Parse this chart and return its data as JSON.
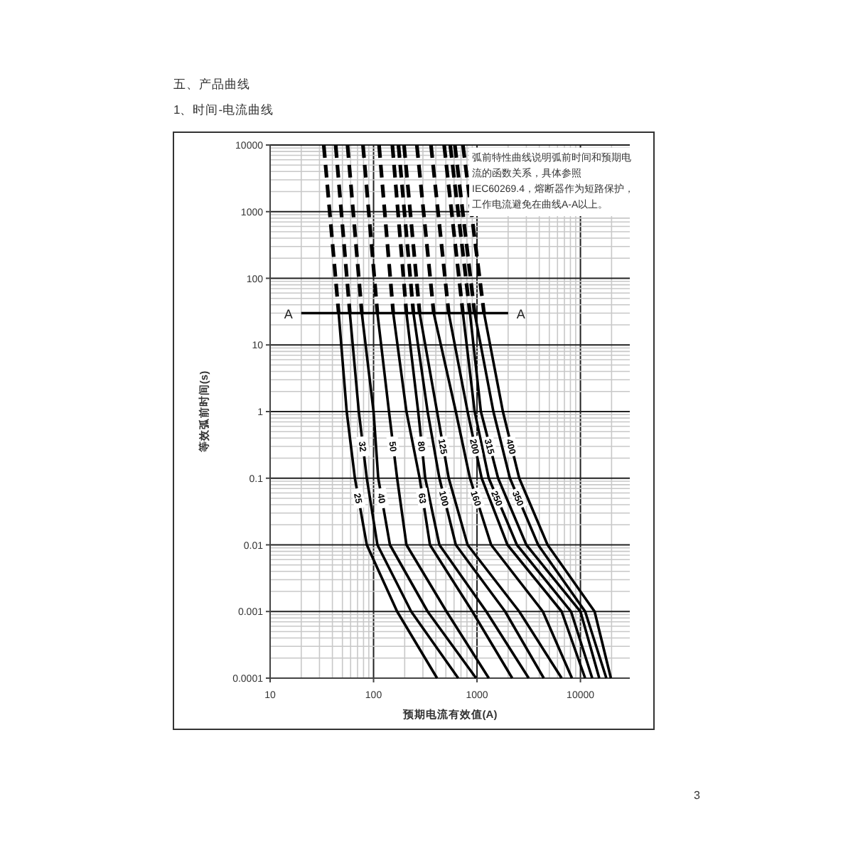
{
  "chart_data": {
    "type": "line",
    "title": "五、产品曲线",
    "subtitle": "1、时间-电流曲线",
    "xlabel": "预期电流有效值(A)",
    "ylabel": "等效弧前时间(s)",
    "log": "xy",
    "grid": true,
    "xlim": [
      10,
      30000
    ],
    "ylim": [
      0.0001,
      10000
    ],
    "xticks": [
      10,
      100,
      1000,
      10000
    ],
    "yticks": [
      0.0001,
      0.001,
      0.01,
      0.1,
      1,
      10,
      100,
      1000,
      10000
    ],
    "annotations": [
      "弧前特性曲线说明弧前时间和预期电流的函数关系，具体参照 IEC60269.4，熔断器作为短路保护，工作电流避免在曲线A-A以上。",
      "3",
      "A",
      "A"
    ],
    "series": [
      {
        "color": "#000000",
        "line_style": "solid",
        "x": [
          20,
          2000
        ],
        "values": [
          30,
          30
        ]
      },
      {
        "color": "#000000",
        "line_style": "dashed",
        "x": [
          33,
          46
        ],
        "values": [
          10000,
          30
        ]
      },
      {
        "color": "#000000",
        "line_style": "dashed",
        "x": [
          43,
          59
        ],
        "values": [
          10000,
          30
        ]
      },
      {
        "color": "#000000",
        "line_style": "dashed",
        "x": [
          56,
          77
        ],
        "values": [
          10000,
          30
        ]
      },
      {
        "color": "#000000",
        "line_style": "dashed",
        "x": [
          79,
          109
        ],
        "values": [
          10000,
          30
        ]
      },
      {
        "color": "#000000",
        "line_style": "dashed",
        "x": [
          113,
          155
        ],
        "values": [
          10000,
          30
        ]
      },
      {
        "color": "#000000",
        "line_style": "dashed",
        "x": [
          152,
          208
        ],
        "values": [
          10000,
          30
        ]
      },
      {
        "color": "#000000",
        "line_style": "dashed",
        "x": [
          174,
          243
        ],
        "values": [
          10000,
          30
        ]
      },
      {
        "color": "#000000",
        "line_style": "dashed",
        "x": [
          197,
          279
        ],
        "values": [
          10000,
          30
        ]
      },
      {
        "color": "#000000",
        "line_style": "dashed",
        "x": [
          262,
          382
        ],
        "values": [
          10000,
          30
        ]
      },
      {
        "color": "#000000",
        "line_style": "dashed",
        "x": [
          359,
          533
        ],
        "values": [
          10000,
          30
        ]
      },
      {
        "color": "#000000",
        "line_style": "dashed",
        "x": [
          481,
          731
        ],
        "values": [
          10000,
          30
        ]
      },
      {
        "color": "#000000",
        "line_style": "dashed",
        "x": [
          551,
          855
        ],
        "values": [
          10000,
          30
        ]
      },
      {
        "color": "#000000",
        "line_style": "dashed",
        "x": [
          611,
          949
        ],
        "values": [
          10000,
          30
        ]
      },
      {
        "color": "#000000",
        "line_style": "dashed",
        "x": [
          731,
          1170
        ],
        "values": [
          10000,
          30
        ]
      },
      {
        "name": "25",
        "color": "#000000",
        "line_style": "solid",
        "x": [
          46,
          55,
          66,
          86,
          169,
          411
        ],
        "values": [
          30,
          1,
          0.1,
          0.01,
          0.001,
          0.0001
        ]
      },
      {
        "name": "32",
        "color": "#000000",
        "line_style": "solid",
        "x": [
          59,
          72,
          86,
          109,
          231,
          658
        ],
        "values": [
          30,
          1,
          0.1,
          0.01,
          0.001,
          0.0001
        ]
      },
      {
        "name": "40",
        "color": "#000000",
        "line_style": "solid",
        "x": [
          77,
          100,
          111,
          144,
          333,
          980
        ],
        "values": [
          30,
          1,
          0.1,
          0.01,
          0.001,
          0.0001
        ]
      },
      {
        "name": "50",
        "color": "#000000",
        "line_style": "solid",
        "x": [
          109,
          141,
          169,
          208,
          507,
          1300
        ],
        "values": [
          30,
          1,
          0.1,
          0.01,
          0.001,
          0.0001
        ]
      },
      {
        "name": "63",
        "color": "#000000",
        "line_style": "solid",
        "x": [
          155,
          208,
          279,
          351,
          902,
          2190
        ],
        "values": [
          30,
          1,
          0.1,
          0.01,
          0.001,
          0.0001
        ]
      },
      {
        "name": "80",
        "color": "#000000",
        "line_style": "solid",
        "x": [
          208,
          270,
          316,
          433,
          1230,
          3160
        ],
        "values": [
          30,
          1,
          0.1,
          0.01,
          0.001,
          0.0001
        ]
      },
      {
        "name": "100",
        "color": "#000000",
        "line_style": "solid",
        "x": [
          243,
          333,
          433,
          624,
          1870,
          4420
        ],
        "values": [
          30,
          1,
          0.1,
          0.01,
          0.001,
          0.0001
        ]
      },
      {
        "name": "125",
        "color": "#000000",
        "line_style": "solid",
        "x": [
          279,
          411,
          533,
          811,
          2560,
          6580
        ],
        "values": [
          30,
          1,
          0.1,
          0.01,
          0.001,
          0.0001
        ]
      },
      {
        "name": "160",
        "color": "#000000",
        "line_style": "solid",
        "x": [
          382,
          624,
          855,
          1370,
          4330,
          8280
        ],
        "values": [
          30,
          1,
          0.1,
          0.01,
          0.001,
          0.0001
        ]
      },
      {
        "name": "200",
        "color": "#000000",
        "line_style": "solid",
        "x": [
          533,
          811,
          1110,
          1970,
          6580,
          11100
        ],
        "values": [
          30,
          1,
          0.1,
          0.01,
          0.001,
          0.0001
        ]
      },
      {
        "name": "250",
        "color": "#000000",
        "line_style": "solid",
        "x": [
          731,
          949,
          1300,
          2430,
          8110,
          13000
        ],
        "values": [
          30,
          1,
          0.1,
          0.01,
          0.001,
          0.0001
        ]
      },
      {
        "name": "315",
        "color": "#000000",
        "line_style": "solid",
        "x": [
          855,
          1090,
          1600,
          3000,
          10000,
          15200
        ],
        "values": [
          30,
          1,
          0.1,
          0.01,
          0.001,
          0.0001
        ]
      },
      {
        "name": "350",
        "color": "#000000",
        "line_style": "solid",
        "x": [
          949,
          1440,
          2080,
          3900,
          11100,
          17800
        ],
        "values": [
          30,
          1,
          0.1,
          0.01,
          0.001,
          0.0001
        ]
      },
      {
        "name": "400",
        "color": "#000000",
        "line_style": "solid",
        "x": [
          1170,
          1780,
          2560,
          4810,
          13700,
          19700
        ],
        "values": [
          30,
          1,
          0.1,
          0.01,
          0.001,
          0.0001
        ]
      }
    ]
  }
}
